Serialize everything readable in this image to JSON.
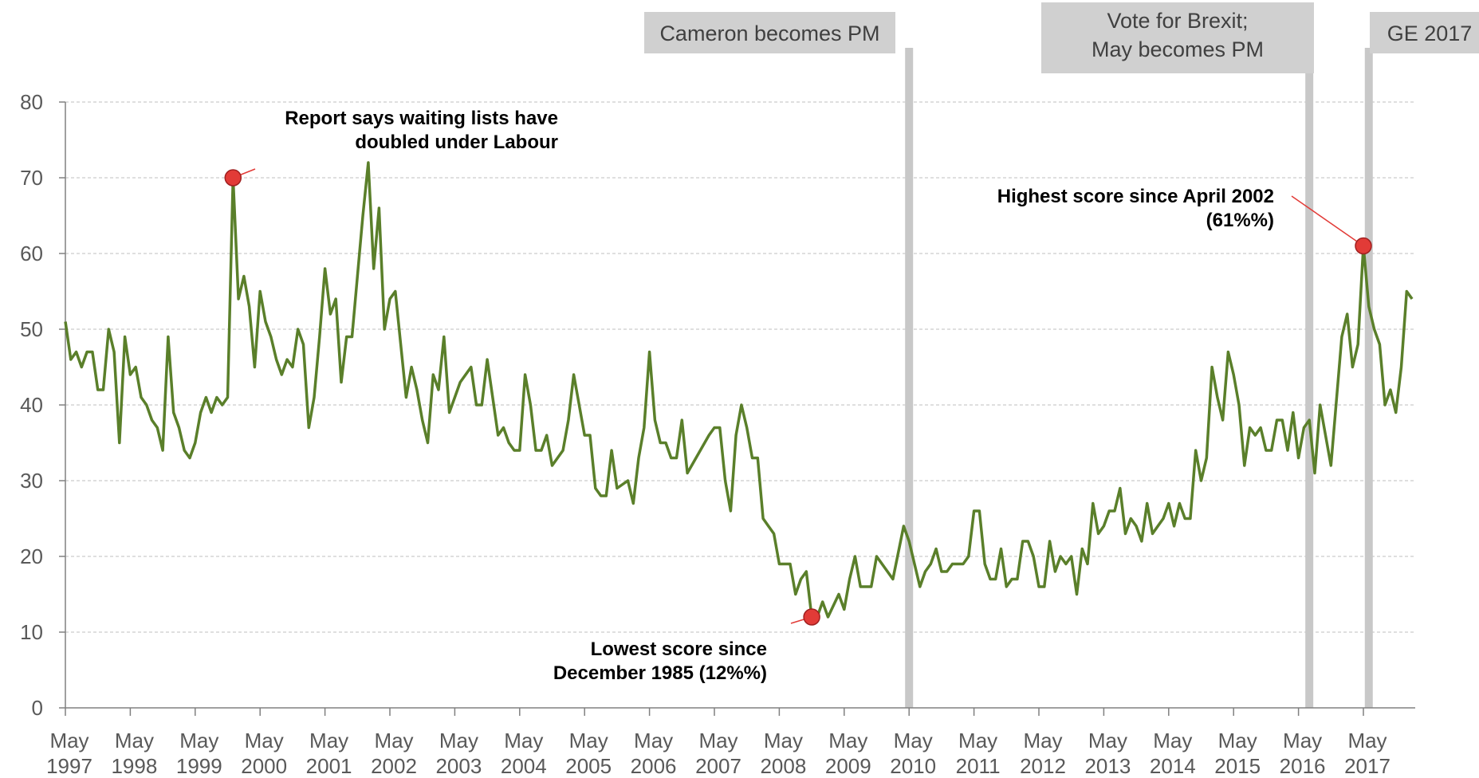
{
  "chart_data": {
    "type": "line",
    "ylim": [
      0,
      80
    ],
    "y_ticks": [
      0,
      10,
      20,
      30,
      40,
      50,
      60,
      70,
      80
    ],
    "x_tick_labels": [
      [
        "May",
        "1997"
      ],
      [
        "May",
        "1998"
      ],
      [
        "May",
        "1999"
      ],
      [
        "May",
        "2000"
      ],
      [
        "May",
        "2001"
      ],
      [
        "May",
        "2002"
      ],
      [
        "May",
        "2003"
      ],
      [
        "May",
        "2004"
      ],
      [
        "May",
        "2005"
      ],
      [
        "May",
        "2006"
      ],
      [
        "May",
        "2007"
      ],
      [
        "May",
        "2008"
      ],
      [
        "May",
        "2009"
      ],
      [
        "May",
        "2010"
      ],
      [
        "May",
        "2011"
      ],
      [
        "May",
        "2012"
      ],
      [
        "May",
        "2013"
      ],
      [
        "May",
        "2014"
      ],
      [
        "May",
        "2015"
      ],
      [
        "May",
        "2016"
      ],
      [
        "May",
        "2017"
      ]
    ],
    "grid": true,
    "line_color": "#5a7f2a",
    "series": [
      {
        "points": [
          [
            "1997-05",
            51
          ],
          [
            "1997-06",
            46
          ],
          [
            "1997-07",
            47
          ],
          [
            "1997-08",
            45
          ],
          [
            "1997-09",
            47
          ],
          [
            "1997-10",
            47
          ],
          [
            "1997-11",
            42
          ],
          [
            "1997-12",
            42
          ],
          [
            "1998-01",
            50
          ],
          [
            "1998-02",
            47
          ],
          [
            "1998-03",
            35
          ],
          [
            "1998-04",
            49
          ],
          [
            "1998-05",
            44
          ],
          [
            "1998-06",
            45
          ],
          [
            "1998-07",
            41
          ],
          [
            "1998-08",
            40
          ],
          [
            "1998-09",
            38
          ],
          [
            "1998-10",
            37
          ],
          [
            "1998-11",
            34
          ],
          [
            "1998-12",
            49
          ],
          [
            "1999-01",
            39
          ],
          [
            "1999-02",
            37
          ],
          [
            "1999-03",
            34
          ],
          [
            "1999-04",
            33
          ],
          [
            "1999-05",
            35
          ],
          [
            "1999-06",
            39
          ],
          [
            "1999-07",
            41
          ],
          [
            "1999-08",
            39
          ],
          [
            "1999-09",
            41
          ],
          [
            "1999-10",
            40
          ],
          [
            "1999-11",
            41
          ],
          [
            "1999-12",
            70
          ],
          [
            "2000-01",
            54
          ],
          [
            "2000-02",
            57
          ],
          [
            "2000-03",
            53
          ],
          [
            "2000-04",
            45
          ],
          [
            "2000-05",
            55
          ],
          [
            "2000-06",
            51
          ],
          [
            "2000-07",
            49
          ],
          [
            "2000-08",
            46
          ],
          [
            "2000-09",
            44
          ],
          [
            "2000-10",
            46
          ],
          [
            "2000-11",
            45
          ],
          [
            "2000-12",
            50
          ],
          [
            "2001-01",
            48
          ],
          [
            "2001-02",
            37
          ],
          [
            "2001-03",
            41
          ],
          [
            "2001-04",
            49
          ],
          [
            "2001-05",
            58
          ],
          [
            "2001-06",
            52
          ],
          [
            "2001-07",
            54
          ],
          [
            "2001-08",
            43
          ],
          [
            "2001-09",
            49
          ],
          [
            "2001-10",
            49
          ],
          [
            "2001-11",
            57
          ],
          [
            "2001-12",
            65
          ],
          [
            "2002-01",
            72
          ],
          [
            "2002-02",
            58
          ],
          [
            "2002-03",
            66
          ],
          [
            "2002-04",
            50
          ],
          [
            "2002-05",
            54
          ],
          [
            "2002-06",
            55
          ],
          [
            "2002-07",
            48
          ],
          [
            "2002-08",
            41
          ],
          [
            "2002-09",
            45
          ],
          [
            "2002-10",
            42
          ],
          [
            "2002-11",
            38
          ],
          [
            "2002-12",
            35
          ],
          [
            "2003-01",
            44
          ],
          [
            "2003-02",
            42
          ],
          [
            "2003-03",
            49
          ],
          [
            "2003-04",
            39
          ],
          [
            "2003-06",
            43
          ],
          [
            "2003-08",
            45
          ],
          [
            "2003-09",
            40
          ],
          [
            "2003-10",
            40
          ],
          [
            "2003-11",
            46
          ],
          [
            "2003-12",
            41
          ],
          [
            "2004-01",
            36
          ],
          [
            "2004-02",
            37
          ],
          [
            "2004-03",
            35
          ],
          [
            "2004-04",
            34
          ],
          [
            "2004-05",
            34
          ],
          [
            "2004-06",
            44
          ],
          [
            "2004-07",
            40
          ],
          [
            "2004-08",
            34
          ],
          [
            "2004-09",
            34
          ],
          [
            "2004-10",
            36
          ],
          [
            "2004-11",
            32
          ],
          [
            "2005-01",
            34
          ],
          [
            "2005-02",
            38
          ],
          [
            "2005-03",
            44
          ],
          [
            "2005-04",
            40
          ],
          [
            "2005-05",
            36
          ],
          [
            "2005-06",
            36
          ],
          [
            "2005-07",
            29
          ],
          [
            "2005-08",
            28
          ],
          [
            "2005-09",
            28
          ],
          [
            "2005-10",
            34
          ],
          [
            "2005-11",
            29
          ],
          [
            "2006-01",
            30
          ],
          [
            "2006-02",
            27
          ],
          [
            "2006-03",
            33
          ],
          [
            "2006-04",
            37
          ],
          [
            "2006-05",
            47
          ],
          [
            "2006-06",
            38
          ],
          [
            "2006-07",
            35
          ],
          [
            "2006-08",
            35
          ],
          [
            "2006-09",
            33
          ],
          [
            "2006-10",
            33
          ],
          [
            "2006-11",
            38
          ],
          [
            "2006-12",
            31
          ],
          [
            "2007-04",
            36
          ],
          [
            "2007-05",
            37
          ],
          [
            "2007-06",
            37
          ],
          [
            "2007-07",
            30
          ],
          [
            "2007-08",
            26
          ],
          [
            "2007-09",
            36
          ],
          [
            "2007-10",
            40
          ],
          [
            "2007-11",
            37
          ],
          [
            "2007-12",
            33
          ],
          [
            "2008-01",
            33
          ],
          [
            "2008-02",
            25
          ],
          [
            "2008-03",
            24
          ],
          [
            "2008-04",
            23
          ],
          [
            "2008-05",
            19
          ],
          [
            "2008-06",
            19
          ],
          [
            "2008-07",
            19
          ],
          [
            "2008-08",
            15
          ],
          [
            "2008-09",
            17
          ],
          [
            "2008-10",
            18
          ],
          [
            "2008-11",
            12
          ],
          [
            "2008-12",
            12
          ],
          [
            "2009-01",
            14
          ],
          [
            "2009-02",
            12
          ],
          [
            "2009-04",
            15
          ],
          [
            "2009-05",
            13
          ],
          [
            "2009-06",
            17
          ],
          [
            "2009-07",
            20
          ],
          [
            "2009-08",
            16
          ],
          [
            "2009-10",
            16
          ],
          [
            "2009-11",
            20
          ],
          [
            "2010-01",
            18
          ],
          [
            "2010-02",
            17
          ],
          [
            "2010-04",
            24
          ],
          [
            "2010-05",
            22
          ],
          [
            "2010-07",
            16
          ],
          [
            "2010-08",
            18
          ],
          [
            "2010-09",
            19
          ],
          [
            "2010-10",
            21
          ],
          [
            "2010-11",
            18
          ],
          [
            "2010-12",
            18
          ],
          [
            "2011-01",
            19
          ],
          [
            "2011-03",
            19
          ],
          [
            "2011-04",
            20
          ],
          [
            "2011-05",
            26
          ],
          [
            "2011-06",
            26
          ],
          [
            "2011-07",
            19
          ],
          [
            "2011-08",
            17
          ],
          [
            "2011-09",
            17
          ],
          [
            "2011-10",
            21
          ],
          [
            "2011-11",
            16
          ],
          [
            "2011-12",
            17
          ],
          [
            "2012-01",
            17
          ],
          [
            "2012-02",
            22
          ],
          [
            "2012-03",
            22
          ],
          [
            "2012-04",
            20
          ],
          [
            "2012-05",
            16
          ],
          [
            "2012-06",
            16
          ],
          [
            "2012-07",
            22
          ],
          [
            "2012-08",
            18
          ],
          [
            "2012-09",
            20
          ],
          [
            "2012-10",
            19
          ],
          [
            "2012-11",
            20
          ],
          [
            "2012-12",
            15
          ],
          [
            "2013-01",
            21
          ],
          [
            "2013-02",
            19
          ],
          [
            "2013-03",
            27
          ],
          [
            "2013-04",
            23
          ],
          [
            "2013-05",
            24
          ],
          [
            "2013-06",
            26
          ],
          [
            "2013-07",
            26
          ],
          [
            "2013-08",
            29
          ],
          [
            "2013-09",
            23
          ],
          [
            "2013-10",
            25
          ],
          [
            "2013-11",
            24
          ],
          [
            "2013-12",
            22
          ],
          [
            "2014-01",
            27
          ],
          [
            "2014-02",
            23
          ],
          [
            "2014-03",
            24
          ],
          [
            "2014-04",
            25
          ],
          [
            "2014-05",
            27
          ],
          [
            "2014-06",
            24
          ],
          [
            "2014-07",
            27
          ],
          [
            "2014-08",
            25
          ],
          [
            "2014-09",
            25
          ],
          [
            "2014-10",
            34
          ],
          [
            "2014-11",
            30
          ],
          [
            "2014-12",
            33
          ],
          [
            "2015-01",
            45
          ],
          [
            "2015-02",
            41
          ],
          [
            "2015-03",
            38
          ],
          [
            "2015-04",
            47
          ],
          [
            "2015-05",
            44
          ],
          [
            "2015-06",
            40
          ],
          [
            "2015-07",
            32
          ],
          [
            "2015-08",
            37
          ],
          [
            "2015-09",
            36
          ],
          [
            "2015-10",
            37
          ],
          [
            "2015-11",
            34
          ],
          [
            "2015-12",
            34
          ],
          [
            "2016-01",
            38
          ],
          [
            "2016-02",
            38
          ],
          [
            "2016-03",
            34
          ],
          [
            "2016-04",
            39
          ],
          [
            "2016-05",
            33
          ],
          [
            "2016-06",
            37
          ],
          [
            "2016-07",
            38
          ],
          [
            "2016-08",
            31
          ],
          [
            "2016-09",
            40
          ],
          [
            "2016-11",
            32
          ],
          [
            "2017-01",
            49
          ],
          [
            "2017-02",
            52
          ],
          [
            "2017-03",
            45
          ],
          [
            "2017-04",
            48
          ],
          [
            "2017-05",
            61
          ],
          [
            "2017-06",
            53
          ],
          [
            "2017-07",
            50
          ],
          [
            "2017-08",
            48
          ],
          [
            "2017-09",
            40
          ],
          [
            "2017-10",
            42
          ],
          [
            "2017-11",
            39
          ],
          [
            "2017-12",
            45
          ],
          [
            "2018-01",
            55
          ],
          [
            "2018-02",
            54
          ]
        ]
      }
    ],
    "events": [
      {
        "label": [
          "Cameron becomes PM"
        ],
        "date": "2010-05"
      },
      {
        "label": [
          "Vote for Brexit;",
          "May becomes PM"
        ],
        "date": "2016-07"
      },
      {
        "label": [
          "GE 2017"
        ],
        "date": "2017-06"
      }
    ],
    "annotations": [
      {
        "lines": [
          "Report says waiting lists have",
          "doubled under Labour"
        ],
        "date": "1999-12",
        "value": 70
      },
      {
        "lines": [
          "Lowest score since",
          "December 1985 (12%%)"
        ],
        "date": "2008-11",
        "value": 12
      },
      {
        "lines": [
          "Highest score since April 2002",
          "(61%%)"
        ],
        "date": "2017-05",
        "value": 61
      }
    ],
    "marker_color": "#e23b37"
  }
}
